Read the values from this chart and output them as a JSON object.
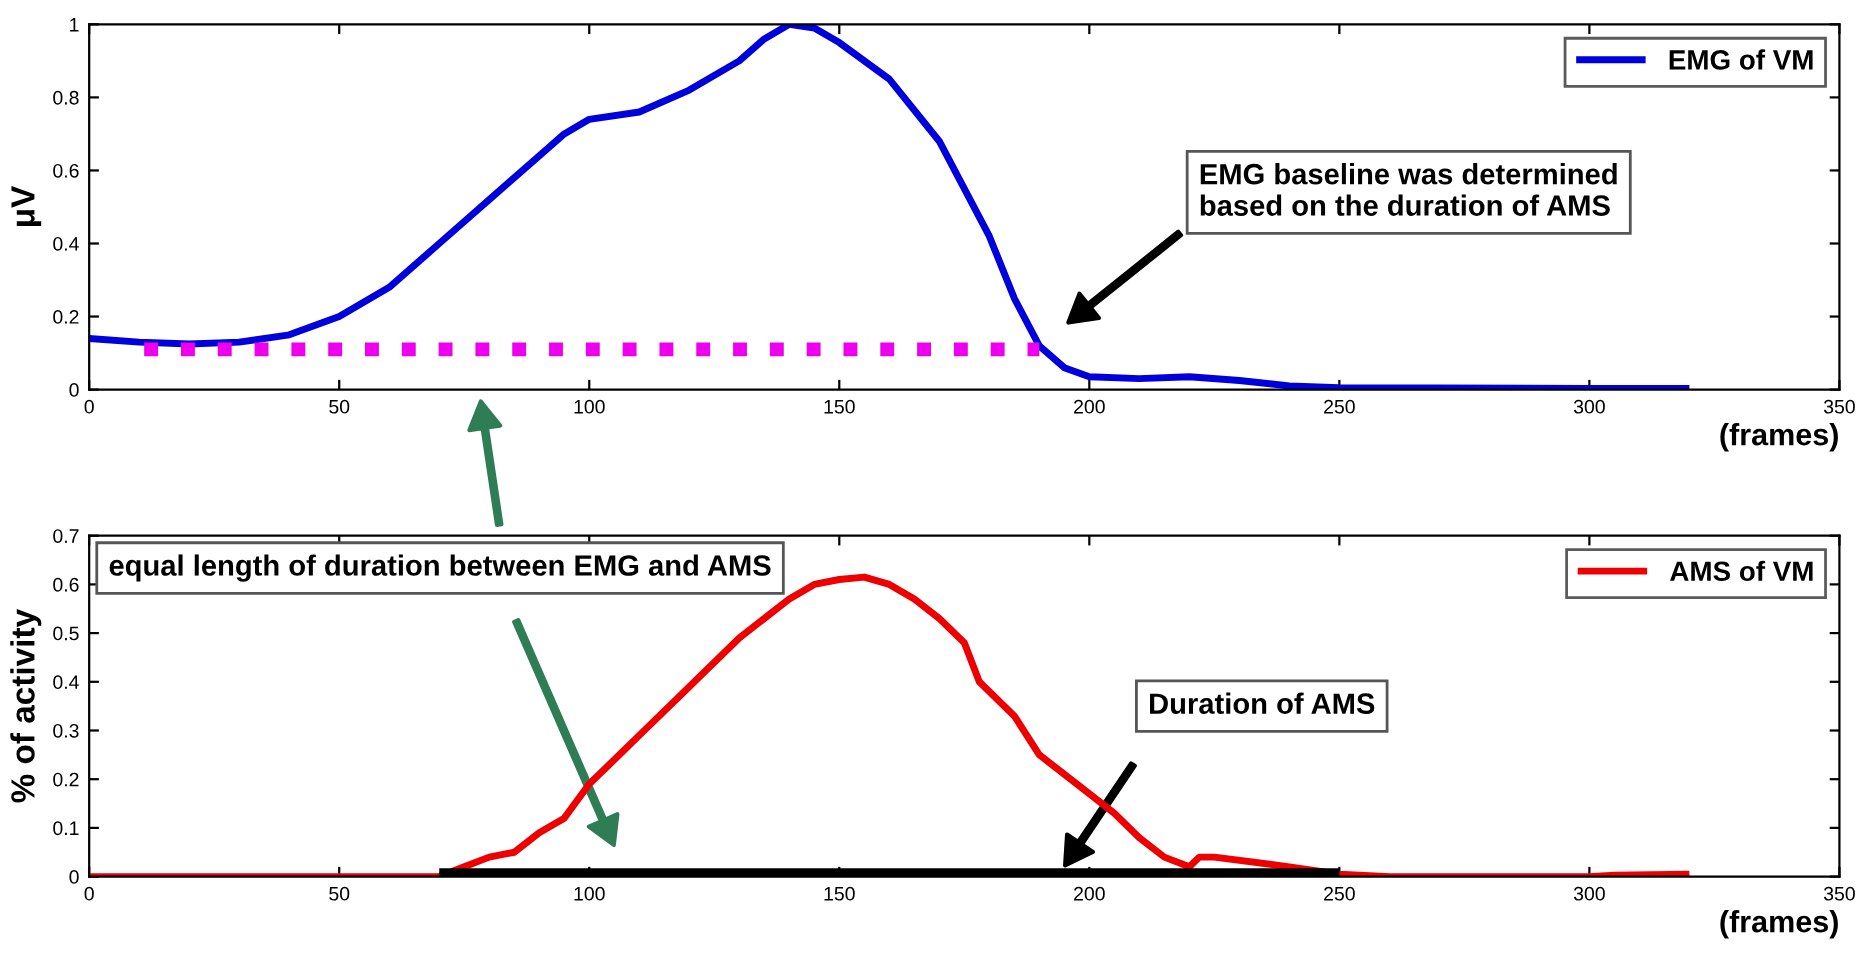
{
  "chart_data": [
    {
      "type": "line",
      "ylabel": "μV",
      "xlabel": "(frames)",
      "xlim": [
        0,
        350
      ],
      "ylim": [
        0,
        1
      ],
      "xticks": [
        0,
        50,
        100,
        150,
        200,
        250,
        300,
        350
      ],
      "yticks": [
        0,
        0.2,
        0.4,
        0.6,
        0.8,
        1
      ],
      "legend": "top right",
      "grid": false,
      "series": [
        {
          "name": "EMG of VM",
          "color": "#0000dd",
          "line_style": "solid",
          "x": [
            0,
            10,
            20,
            30,
            40,
            50,
            60,
            70,
            80,
            90,
            95,
            100,
            110,
            120,
            130,
            135,
            140,
            145,
            150,
            160,
            170,
            180,
            185,
            190,
            195,
            200,
            210,
            220,
            230,
            240,
            250,
            300,
            320
          ],
          "values": [
            0.14,
            0.13,
            0.125,
            0.13,
            0.15,
            0.2,
            0.28,
            0.4,
            0.52,
            0.64,
            0.7,
            0.74,
            0.76,
            0.82,
            0.9,
            0.96,
            1.0,
            0.99,
            0.95,
            0.85,
            0.68,
            0.42,
            0.25,
            0.12,
            0.06,
            0.035,
            0.03,
            0.035,
            0.025,
            0.01,
            0.005,
            0.003,
            0.003
          ]
        },
        {
          "color": "#ee00ee",
          "line_style": "dotted",
          "x": [
            11,
            190
          ],
          "values": [
            0.11,
            0.11
          ]
        }
      ],
      "annotations": [
        "EMG baseline was determined\nbased on the duration of AMS"
      ]
    },
    {
      "type": "line",
      "ylabel": "% of activity",
      "xlabel": "(frames)",
      "xlim": [
        0,
        350
      ],
      "ylim": [
        0,
        0.7
      ],
      "xticks": [
        0,
        50,
        100,
        150,
        200,
        250,
        300,
        350
      ],
      "yticks": [
        0,
        0.1,
        0.2,
        0.3,
        0.4,
        0.5,
        0.6,
        0.7
      ],
      "legend": "top right",
      "grid": false,
      "series": [
        {
          "name": "AMS of VM",
          "color": "#ee0000",
          "line_style": "solid",
          "x": [
            0,
            70,
            75,
            80,
            85,
            90,
            95,
            100,
            105,
            110,
            120,
            130,
            140,
            145,
            150,
            155,
            160,
            165,
            170,
            175,
            178,
            185,
            190,
            195,
            200,
            205,
            210,
            215,
            220,
            222,
            225,
            240,
            250,
            260,
            300,
            305,
            320
          ],
          "values": [
            0,
            0,
            0.02,
            0.04,
            0.05,
            0.09,
            0.12,
            0.19,
            0.24,
            0.29,
            0.39,
            0.49,
            0.57,
            0.6,
            0.61,
            0.615,
            0.6,
            0.57,
            0.53,
            0.48,
            0.4,
            0.33,
            0.25,
            0.21,
            0.17,
            0.13,
            0.08,
            0.04,
            0.02,
            0.04,
            0.04,
            0.02,
            0.005,
            0,
            0,
            0.003,
            0.005
          ]
        },
        {
          "color": "#000000",
          "line_style": "solid",
          "x": [
            70,
            250
          ],
          "values": [
            0,
            0
          ]
        }
      ],
      "annotations": [
        "equal length of duration between EMG and AMS",
        "Duration of AMS"
      ]
    }
  ]
}
